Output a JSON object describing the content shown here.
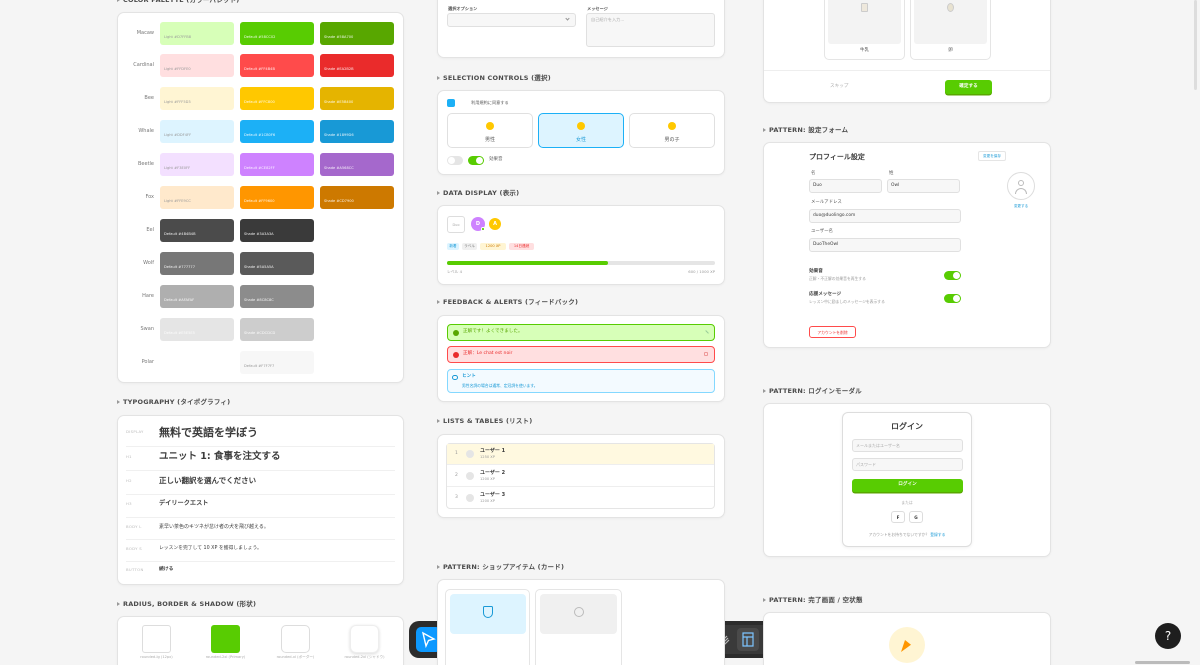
{
  "sections": {
    "palette": "COLOR PALETTE (カラーパレット)",
    "typography": "TYPOGRAPHY (タイポグラフィ)",
    "shape": "RADIUS, BORDER & SHADOW (形状)",
    "selection": "SELECTION CONTROLS (選択)",
    "data_display": "DATA DISPLAY (表示)",
    "feedback": "FEEDBACK & ALERTS (フィードバック)",
    "lists": "LISTS & TABLES (リスト)",
    "shop": "PATTERN: ショップアイテム (カード)",
    "settings": "PATTERN: 設定フォーム",
    "login": "PATTERN: ログインモーダル",
    "complete": "PATTERN: 完了画面 / 空状態"
  },
  "palette": [
    {
      "name": "Macaw",
      "swatches": [
        {
          "label": "Light #D7FFB8",
          "color": "#D7FFB8"
        },
        {
          "label": "Default #58CC02",
          "color": "#58CC02"
        },
        {
          "label": "Shade #58A700",
          "color": "#58A700"
        }
      ]
    },
    {
      "name": "Cardinal",
      "swatches": [
        {
          "label": "Light #FFDFE0",
          "color": "#FFDFE0"
        },
        {
          "label": "Default #FF4B4B",
          "color": "#FF4B4B"
        },
        {
          "label": "Shade #EA2B2B",
          "color": "#EA2B2B"
        }
      ]
    },
    {
      "name": "Bee",
      "swatches": [
        {
          "label": "Light #FFF5D3",
          "color": "#FFF5D3"
        },
        {
          "label": "Default #FFC800",
          "color": "#FFC800"
        },
        {
          "label": "Shade #E5B400",
          "color": "#E5B400"
        }
      ]
    },
    {
      "name": "Whale",
      "swatches": [
        {
          "label": "Light #DDF4FF",
          "color": "#DDF4FF"
        },
        {
          "label": "Default #1CB0F6",
          "color": "#1CB0F6"
        },
        {
          "label": "Shade #1899D6",
          "color": "#1899D6"
        }
      ]
    },
    {
      "name": "Beetle",
      "swatches": [
        {
          "label": "Light #F3E0FF",
          "color": "#F3E0FF"
        },
        {
          "label": "Default #CE82FF",
          "color": "#CE82FF"
        },
        {
          "label": "Shade #A568CC",
          "color": "#A568CC"
        }
      ]
    },
    {
      "name": "Fox",
      "swatches": [
        {
          "label": "Light #FFE9CC",
          "color": "#FFE9CC"
        },
        {
          "label": "Default #FF9600",
          "color": "#FF9600"
        },
        {
          "label": "Shade #CD7900",
          "color": "#CD7900"
        }
      ]
    },
    {
      "name": "Eel",
      "swatches": [
        {
          "label": "Default #4B4B4B",
          "color": "#4B4B4B"
        },
        {
          "label": "Shade #3A3A3A",
          "color": "#3A3A3A"
        }
      ]
    },
    {
      "name": "Wolf",
      "swatches": [
        {
          "label": "Default #777777",
          "color": "#777777"
        },
        {
          "label": "Shade #5A5A5A",
          "color": "#5A5A5A"
        }
      ]
    },
    {
      "name": "Hare",
      "swatches": [
        {
          "label": "Default #AFAFAF",
          "color": "#AFAFAF"
        },
        {
          "label": "Shade #8C8C8C",
          "color": "#8C8C8C"
        }
      ]
    },
    {
      "name": "Swan",
      "swatches": [
        {
          "label": "Default #E5E5E5",
          "color": "#E5E5E5"
        },
        {
          "label": "Shade #CDCDCD",
          "color": "#CDCDCD"
        }
      ]
    },
    {
      "name": "Polar",
      "swatches": [
        {
          "label": "Default #F7F7F7",
          "color": "#F7F7F7"
        }
      ]
    }
  ],
  "typography": [
    {
      "label": "DISPLAY",
      "text": "無料で英語を学ぼう"
    },
    {
      "label": "H1",
      "text": "ユニット 1: 食事を注文する"
    },
    {
      "label": "H2",
      "text": "正しい翻訳を選んでください"
    },
    {
      "label": "H3",
      "text": "デイリークエスト"
    },
    {
      "label": "BODY L",
      "text": "素早い茶色のキツネが怠け者の犬を飛び越える。"
    },
    {
      "label": "BODY S",
      "text": "レッスンを完了して 10 XP を獲得しましょう。"
    },
    {
      "label": "BUTTON",
      "text": "続ける"
    }
  ],
  "shapes": [
    "rounded-lg (12px)",
    "rounded-2xl (Primary)",
    "rounded-xl (ボーダー)",
    "rounded-2xl (シャドウ)"
  ],
  "form": {
    "select_label": "選択オプション",
    "message_label": "メッセージ",
    "message_placeholder": "自己紹介を入力..."
  },
  "selection": {
    "checkbox": "利用規約に同意する",
    "options": [
      "男性",
      "女性",
      "男の子"
    ],
    "toggle": "効果音"
  },
  "data_display": {
    "avatar_square": "Duo",
    "avatars": [
      "D",
      "A"
    ],
    "badges": [
      "新着",
      "ラベル",
      "1200 XP",
      "14日連続"
    ],
    "progress": {
      "value": 600,
      "max": 1000,
      "left": "レベル 4",
      "right": "600 / 1000 XP"
    }
  },
  "feedback": {
    "success": "正解です！よくできました。",
    "error": "正解：Le chat est noir",
    "hint_title": "ヒント",
    "hint_body": "男性名詞の場合は通常、定冠詞を使います。"
  },
  "list": [
    {
      "rank": 1,
      "name": "ユーザー 1",
      "xp": "1250 XP"
    },
    {
      "rank": 2,
      "name": "ユーザー 2",
      "xp": "1200 XP"
    },
    {
      "rank": 3,
      "name": "ユーザー 3",
      "xp": "1200 XP"
    }
  ],
  "shop_select": {
    "items": [
      "牛乳",
      "卵"
    ],
    "skip": "スキップ",
    "confirm": "確定する"
  },
  "settings": {
    "title": "プロフィール設定",
    "save": "変更を保存",
    "first_name_label": "名",
    "first_name": "Duo",
    "last_name_label": "姓",
    "last_name": "Owl",
    "avatar_action": "変更する",
    "email_label": "メールアドレス",
    "email": "duo@duolingo.com",
    "username_label": "ユーザー名",
    "username": "DuoTheOwl",
    "toggles": [
      {
        "title": "効果音",
        "desc": "正解・不正解の効果音を再生する"
      },
      {
        "title": "応援メッセージ",
        "desc": "レッスン中に励ましのメッセージを表示する"
      }
    ],
    "delete": "アカウントを削除"
  },
  "login": {
    "title": "ログイン",
    "email_placeholder": "メールまたはユーザー名",
    "password_placeholder": "パスワード",
    "button": "ログイン",
    "or": "または",
    "social": [
      "F",
      "G"
    ],
    "signup_prompt": "アカウントをお持ちでないですか？",
    "signup_link": "登録する"
  },
  "help": "?"
}
